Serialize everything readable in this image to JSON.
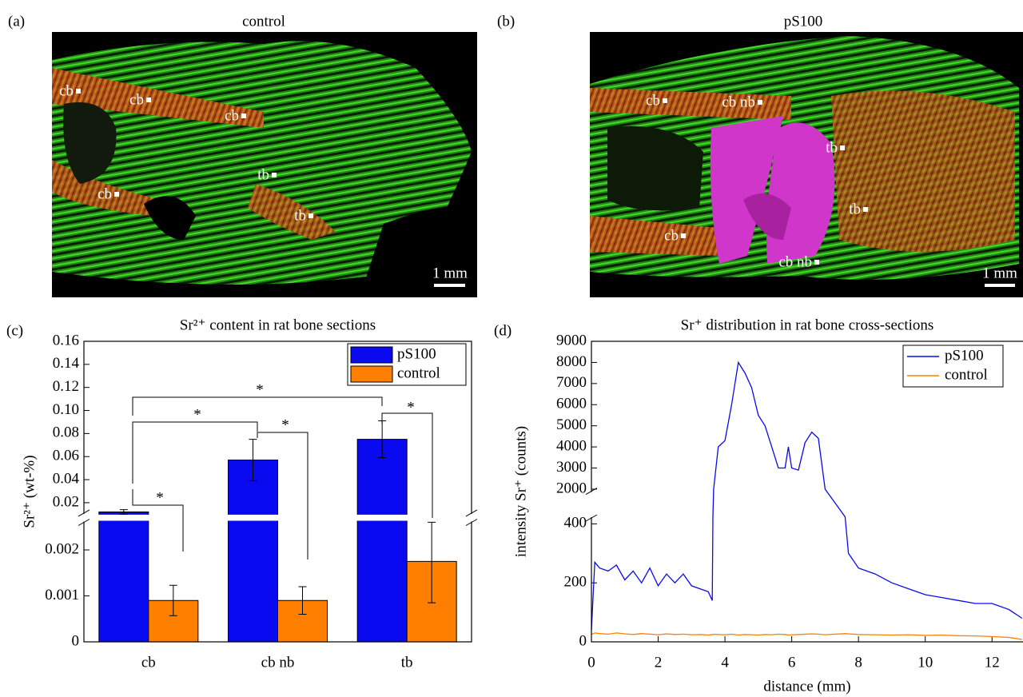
{
  "panels": [
    {
      "label": "(a)",
      "title": "control",
      "annotations": [
        "cb",
        "cb",
        "cb",
        "tb",
        "cb",
        "tb"
      ],
      "scale_bar": "1 mm"
    },
    {
      "label": "(b)",
      "title": "pS100",
      "annotations": [
        "cb",
        "cb nb",
        "tb",
        "tb",
        "cb",
        "cb nb"
      ],
      "scale_bar": "1 mm"
    }
  ],
  "chart_data": [
    {
      "type": "bar",
      "panel_label": "(c)",
      "title": "Sr²⁺ content in rat bone sections",
      "y_label": "Sr²⁺ (wt-%)",
      "categories": [
        "cb",
        "cb nb",
        "tb"
      ],
      "series": [
        {
          "name": "pS100",
          "color": "#0a0af0",
          "values": [
            0.012,
            0.057,
            0.075
          ],
          "error": [
            0.002,
            0.018,
            0.016
          ]
        },
        {
          "name": "control",
          "color": "#ff8000",
          "values": [
            0.0009,
            0.0009,
            0.00175
          ],
          "error": [
            0.00033,
            0.0003,
            0.0009
          ]
        }
      ],
      "ylim": [
        0,
        0.16
      ],
      "y_break": [
        0.0026,
        0.011
      ],
      "yticks": [
        0,
        0.001,
        0.002,
        0.02,
        0.04,
        0.06,
        0.08,
        {
          "value": 0.1,
          "label": "0.10"
        },
        0.12,
        0.14,
        0.16
      ],
      "legend": "upper right",
      "significance": [
        "*",
        "*",
        "*",
        "*",
        "*"
      ]
    },
    {
      "type": "line",
      "panel_label": "(d)",
      "title": "Sr⁺ distribution in rat bone cross-sections",
      "x_label": "distance (mm)",
      "y_label": "intensity Sr⁺ (counts)",
      "x": [
        0,
        0.1,
        0.25,
        0.5,
        0.75,
        1,
        1.25,
        1.5,
        1.75,
        2,
        2.25,
        2.5,
        2.75,
        3,
        3.25,
        3.5,
        3.62,
        3.64,
        3.66,
        3.8,
        4,
        4.2,
        4.4,
        4.6,
        4.8,
        5,
        5.2,
        5.4,
        5.6,
        5.8,
        5.9,
        6,
        6.2,
        6.4,
        6.6,
        6.8,
        7,
        7.6,
        7.7,
        8,
        8.5,
        9,
        9.5,
        10,
        10.5,
        11,
        11.5,
        12,
        12.5,
        12.9
      ],
      "series": [
        {
          "name": "pS100",
          "color": "#0a0af0",
          "values": [
            40,
            270,
            250,
            240,
            260,
            210,
            240,
            200,
            250,
            190,
            230,
            200,
            230,
            190,
            180,
            170,
            140,
            480,
            2000,
            4000,
            4300,
            6000,
            8000,
            7500,
            6800,
            5500,
            5000,
            4000,
            3000,
            3000,
            4000,
            3000,
            2900,
            4200,
            4700,
            4400,
            2000,
            480,
            300,
            250,
            230,
            200,
            180,
            160,
            150,
            140,
            130,
            130,
            110,
            80
          ]
        },
        {
          "name": "control",
          "color": "#ff8000",
          "values": [
            25,
            30,
            28,
            26,
            30,
            27,
            25,
            28,
            26,
            24,
            27,
            25,
            26,
            24,
            25,
            23,
            25,
            24,
            26,
            25,
            24,
            26,
            23,
            25,
            24,
            23,
            25,
            24,
            26,
            25,
            23,
            24,
            25,
            26,
            27,
            26,
            24,
            28,
            27,
            25,
            24,
            23,
            24,
            22,
            23,
            21,
            20,
            18,
            15,
            8
          ]
        }
      ],
      "xlim": [
        0,
        13
      ],
      "xticks": [
        0,
        2,
        4,
        6,
        8,
        10,
        12
      ],
      "ylim": [
        0,
        9000
      ],
      "y_break": [
        420,
        1900
      ],
      "yticks": [
        0,
        200,
        400,
        2000,
        3000,
        4000,
        5000,
        6000,
        7000,
        8000,
        9000
      ],
      "legend": "upper right"
    }
  ]
}
